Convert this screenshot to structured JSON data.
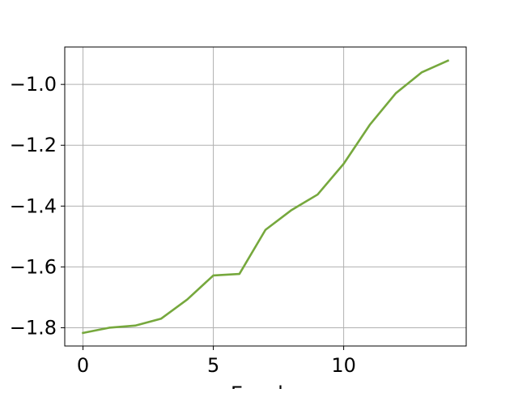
{
  "chart_data": {
    "type": "line",
    "title": "",
    "xlabel": "Epochs",
    "ylabel": "",
    "xlim": [
      -0.7,
      14.7
    ],
    "ylim": [
      -1.86,
      -0.877
    ],
    "x_ticks": [
      0,
      5,
      10
    ],
    "x_tick_labels": [
      "0",
      "5",
      "10"
    ],
    "y_ticks": [
      -1.8,
      -1.6,
      -1.4,
      -1.2,
      -1.0
    ],
    "y_tick_labels": [
      "−1.8",
      "−1.6",
      "−1.4",
      "−1.2",
      "−1.0"
    ],
    "grid": true,
    "legend": false,
    "series": [
      {
        "color": "#76a83d",
        "x": [
          0,
          1,
          2,
          3,
          4,
          5,
          6,
          7,
          8,
          9,
          10,
          11,
          12,
          13,
          14
        ],
        "values": [
          -1.817,
          -1.8,
          -1.793,
          -1.77,
          -1.707,
          -1.628,
          -1.623,
          -1.478,
          -1.413,
          -1.362,
          -1.261,
          -1.133,
          -1.029,
          -0.96,
          -0.922
        ]
      }
    ]
  }
}
